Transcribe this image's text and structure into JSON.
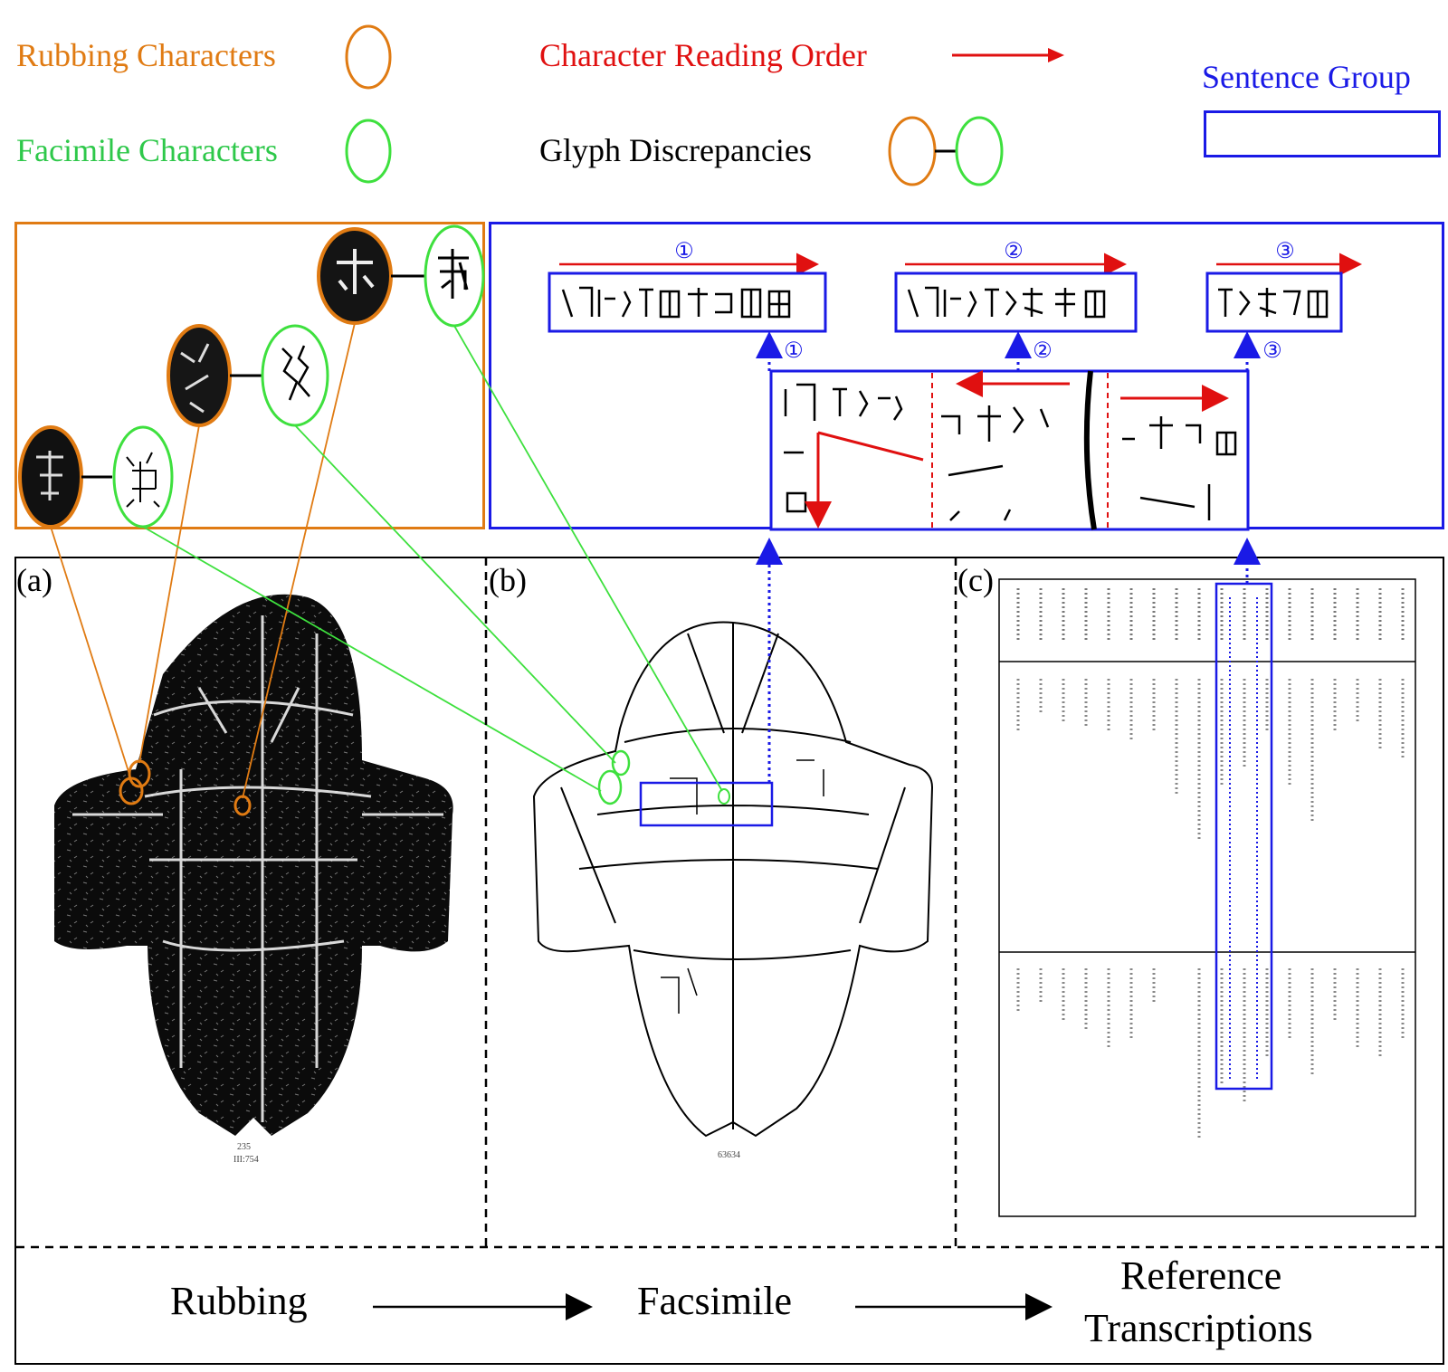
{
  "legend": {
    "rubbing_characters": "Rubbing Characters",
    "facsimile_characters": "Facimile Characters",
    "reading_order": "Character Reading Order",
    "glyph_discrepancies": "Glyph Discrepancies",
    "sentence_group": "Sentence Group"
  },
  "colors": {
    "rubbing": "#e07b13",
    "facsimile": "#3ee03e",
    "reading_order": "#e01010",
    "sentence_group": "#1a1ae6",
    "black": "#000000"
  },
  "sentence_groups": [
    {
      "number": "①"
    },
    {
      "number": "②"
    },
    {
      "number": "③"
    }
  ],
  "panels": {
    "a": "(a)",
    "b": "(b)",
    "c": "(c)"
  },
  "captions": {
    "rubbing_number": "235",
    "rubbing_sub": "III:754",
    "facsimile_number": "63634"
  },
  "flow": {
    "step1": "Rubbing",
    "step2": "Facsimile",
    "step3_line1": "Reference",
    "step3_line2": "Transcriptions"
  }
}
